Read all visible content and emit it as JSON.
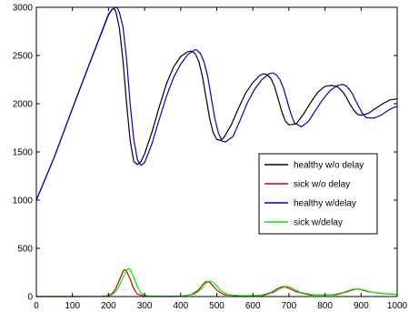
{
  "chart_data": {
    "type": "line",
    "title": "",
    "xlabel": "",
    "ylabel": "",
    "xlim": [
      0,
      1000
    ],
    "ylim": [
      0,
      3000
    ],
    "xticks": [
      0,
      100,
      200,
      300,
      400,
      500,
      600,
      700,
      800,
      900,
      1000
    ],
    "yticks": [
      0,
      500,
      1000,
      1500,
      2000,
      2500,
      3000
    ],
    "grid": false,
    "legend_position": "right",
    "series": [
      {
        "name": "healthy w/o delay",
        "color": "#000000",
        "x": [
          0,
          50,
          100,
          150,
          200,
          210,
          215,
          220,
          230,
          240,
          250,
          260,
          270,
          280,
          290,
          300,
          320,
          340,
          360,
          380,
          400,
          420,
          430,
          440,
          450,
          460,
          470,
          480,
          490,
          500,
          510,
          520,
          540,
          560,
          580,
          600,
          620,
          630,
          640,
          650,
          660,
          670,
          680,
          690,
          700,
          720,
          740,
          760,
          780,
          800,
          820,
          835,
          850,
          860,
          870,
          880,
          890,
          900,
          920,
          940,
          960,
          980,
          1000
        ],
        "y": [
          1000,
          1450,
          1950,
          2440,
          2930,
          2980,
          2985,
          2960,
          2790,
          2450,
          2000,
          1620,
          1400,
          1370,
          1400,
          1480,
          1700,
          1960,
          2200,
          2380,
          2490,
          2540,
          2545,
          2520,
          2440,
          2290,
          2070,
          1850,
          1700,
          1630,
          1620,
          1650,
          1780,
          1950,
          2110,
          2220,
          2295,
          2310,
          2300,
          2260,
          2180,
          2050,
          1920,
          1820,
          1780,
          1790,
          1890,
          2010,
          2120,
          2180,
          2190,
          2175,
          2120,
          2060,
          1990,
          1930,
          1890,
          1880,
          1900,
          1950,
          2000,
          2040,
          2050
        ]
      },
      {
        "name": "sick w/o delay",
        "color": "#cc0000",
        "x": [
          0,
          100,
          180,
          200,
          210,
          220,
          230,
          240,
          245,
          250,
          260,
          270,
          280,
          300,
          400,
          430,
          450,
          460,
          470,
          480,
          490,
          500,
          520,
          560,
          620,
          650,
          670,
          680,
          690,
          700,
          720,
          760,
          820,
          850,
          870,
          880,
          890,
          900,
          920,
          960,
          1000
        ],
        "y": [
          0,
          0,
          2,
          10,
          30,
          80,
          170,
          260,
          280,
          265,
          180,
          80,
          25,
          3,
          3,
          20,
          70,
          120,
          155,
          150,
          110,
          65,
          20,
          8,
          10,
          40,
          85,
          100,
          100,
          85,
          50,
          15,
          15,
          40,
          65,
          75,
          78,
          70,
          50,
          30,
          22
        ]
      },
      {
        "name": "healthy w/delay",
        "color": "#0000cc",
        "x": [
          0,
          50,
          100,
          150,
          200,
          210,
          220,
          225,
          230,
          240,
          250,
          260,
          270,
          280,
          290,
          300,
          320,
          340,
          360,
          380,
          400,
          420,
          440,
          445,
          455,
          465,
          475,
          485,
          495,
          505,
          515,
          525,
          545,
          565,
          585,
          605,
          625,
          645,
          655,
          665,
          675,
          685,
          695,
          705,
          715,
          735,
          755,
          775,
          795,
          815,
          835,
          850,
          860,
          875,
          885,
          895,
          905,
          915,
          935,
          955,
          975,
          990,
          1000
        ],
        "y": [
          1000,
          1450,
          1950,
          2440,
          2920,
          2980,
          3000,
          2990,
          2950,
          2800,
          2460,
          2000,
          1630,
          1420,
          1360,
          1390,
          1580,
          1830,
          2070,
          2270,
          2410,
          2510,
          2560,
          2555,
          2520,
          2430,
          2280,
          2060,
          1840,
          1690,
          1610,
          1605,
          1660,
          1830,
          2010,
          2150,
          2250,
          2310,
          2320,
          2300,
          2250,
          2160,
          2030,
          1900,
          1800,
          1760,
          1820,
          1940,
          2050,
          2140,
          2190,
          2200,
          2180,
          2110,
          2030,
          1960,
          1890,
          1855,
          1850,
          1880,
          1930,
          1960,
          1970
        ]
      },
      {
        "name": "sick w/delay",
        "color": "#00ee00",
        "x": [
          0,
          100,
          180,
          200,
          210,
          220,
          230,
          240,
          250,
          255,
          260,
          270,
          280,
          290,
          310,
          400,
          440,
          460,
          470,
          480,
          490,
          500,
          510,
          530,
          570,
          630,
          660,
          680,
          690,
          700,
          710,
          730,
          770,
          830,
          860,
          880,
          890,
          900,
          910,
          930,
          970,
          1000
        ],
        "y": [
          0,
          0,
          2,
          8,
          20,
          50,
          110,
          200,
          270,
          290,
          280,
          200,
          100,
          35,
          5,
          3,
          25,
          90,
          140,
          160,
          150,
          110,
          65,
          20,
          8,
          10,
          45,
          90,
          105,
          100,
          85,
          45,
          15,
          15,
          45,
          70,
          78,
          75,
          65,
          45,
          28,
          22
        ]
      }
    ]
  }
}
